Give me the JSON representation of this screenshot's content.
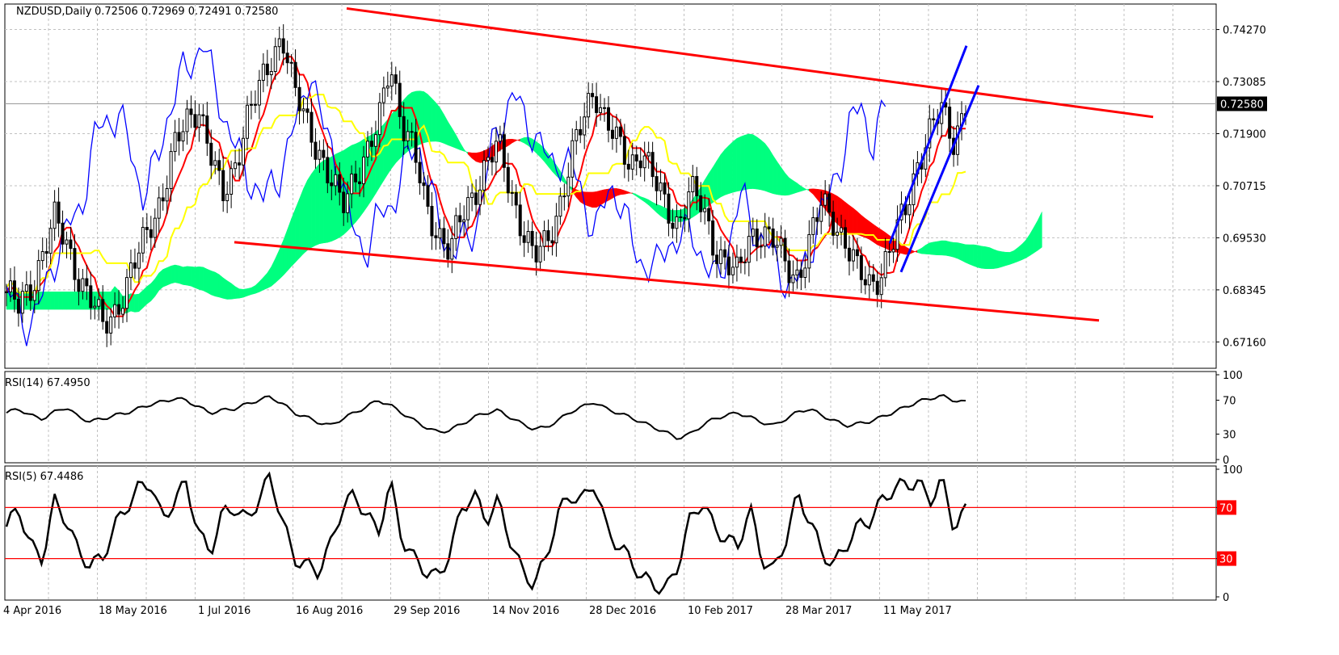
{
  "header": {
    "symbol": "NZDUSD,Daily",
    "ohlc": "0.72506 0.72969 0.72491 0.72580"
  },
  "colors": {
    "candle": "#000000",
    "tenkan": "#ff0000",
    "kijun": "#ffff00",
    "chikou": "#0000ff",
    "kumo_bull": "#00ff7f",
    "kumo_bear": "#ff0000",
    "trendline": "#ff0000",
    "blue_channel": "#0000ff",
    "grid": "#c0c0c0",
    "level_line": "#ff0000"
  },
  "chart_data": [
    {
      "type": "candlestick",
      "title": "NZDUSD,Daily",
      "indicators": [
        "Ichimoku Kinko Hyo",
        "Trendlines"
      ],
      "ylim": [
        0.6656,
        0.7485
      ],
      "y_ticks": [
        "0.74270",
        "0.73085",
        "0.71900",
        "0.70715",
        "0.69530",
        "0.68345",
        "0.67160"
      ],
      "y_tick_values": [
        0.7427,
        0.73085,
        0.719,
        0.70715,
        0.6953,
        0.68345,
        0.6716
      ],
      "x_labels": [
        "4 Apr 2016",
        "18 May 2016",
        "1 Jul 2016",
        "16 Aug 2016",
        "29 Sep 2016",
        "14 Nov 2016",
        "28 Dec 2016",
        "10 Feb 2017",
        "28 Mar 2017",
        "11 May 2017"
      ],
      "current_price": "0.72580",
      "current_price_value": 0.7258,
      "closes_approx": [
        0.683,
        0.679,
        0.684,
        0.692,
        0.699,
        0.694,
        0.687,
        0.681,
        0.675,
        0.679,
        0.684,
        0.691,
        0.699,
        0.705,
        0.715,
        0.722,
        0.726,
        0.714,
        0.704,
        0.712,
        0.722,
        0.728,
        0.736,
        0.742,
        0.728,
        0.722,
        0.716,
        0.708,
        0.702,
        0.71,
        0.714,
        0.72,
        0.736,
        0.722,
        0.714,
        0.702,
        0.697,
        0.692,
        0.7,
        0.706,
        0.712,
        0.716,
        0.707,
        0.698,
        0.69,
        0.694,
        0.702,
        0.712,
        0.721,
        0.73,
        0.722,
        0.716,
        0.712,
        0.716,
        0.708,
        0.702,
        0.699,
        0.706,
        0.702,
        0.694,
        0.69,
        0.686,
        0.696,
        0.697,
        0.694,
        0.689,
        0.687,
        0.694,
        0.703,
        0.7,
        0.694,
        0.687,
        0.685,
        0.688,
        0.694,
        0.702,
        0.713,
        0.719,
        0.724,
        0.718,
        0.7258
      ]
    },
    {
      "type": "line",
      "title": "RSI(14) 67.4950",
      "ylim": [
        0,
        100
      ],
      "y_ticks": [
        "100",
        "70",
        "30",
        "0"
      ],
      "values_approx": [
        55,
        60,
        52,
        48,
        56,
        62,
        50,
        45,
        48,
        52,
        55,
        60,
        65,
        68,
        72,
        70,
        62,
        55,
        58,
        60,
        65,
        70,
        74,
        66,
        55,
        50,
        44,
        40,
        48,
        55,
        62,
        70,
        64,
        55,
        46,
        38,
        32,
        35,
        42,
        50,
        55,
        58,
        50,
        42,
        36,
        38,
        46,
        56,
        62,
        68,
        60,
        55,
        50,
        44,
        38,
        32,
        25,
        30,
        40,
        48,
        52,
        55,
        50,
        44,
        40,
        48,
        56,
        60,
        52,
        46,
        40,
        42,
        45,
        50,
        56,
        62,
        68,
        72,
        75,
        70,
        67.5
      ]
    },
    {
      "type": "line",
      "title": "RSI(5) 67.4486",
      "ylim": [
        0,
        100
      ],
      "y_ticks": [
        "100",
        "70",
        "30",
        "0"
      ],
      "levels": [
        "70",
        "30"
      ],
      "level_values": [
        70,
        30
      ],
      "values_approx": [
        55,
        70,
        40,
        30,
        75,
        60,
        35,
        25,
        30,
        55,
        70,
        85,
        90,
        60,
        75,
        90,
        50,
        35,
        65,
        70,
        60,
        75,
        95,
        60,
        30,
        25,
        20,
        40,
        70,
        80,
        65,
        50,
        90,
        45,
        30,
        20,
        15,
        35,
        70,
        80,
        60,
        75,
        45,
        20,
        10,
        30,
        65,
        80,
        75,
        90,
        55,
        40,
        30,
        15,
        10,
        5,
        25,
        60,
        75,
        55,
        45,
        40,
        70,
        30,
        20,
        45,
        80,
        60,
        35,
        25,
        40,
        55,
        60,
        75,
        85,
        88,
        90,
        75,
        92,
        55,
        67.4
      ]
    }
  ],
  "rsi14": {
    "label": "RSI(14) 67.4950",
    "ticks": [
      "100",
      "70",
      "30",
      "0"
    ]
  },
  "rsi5": {
    "label": "RSI(5) 67.4486",
    "ticks": [
      "100",
      "70",
      "30",
      "0"
    ],
    "level_labels": [
      "70",
      "30"
    ]
  }
}
